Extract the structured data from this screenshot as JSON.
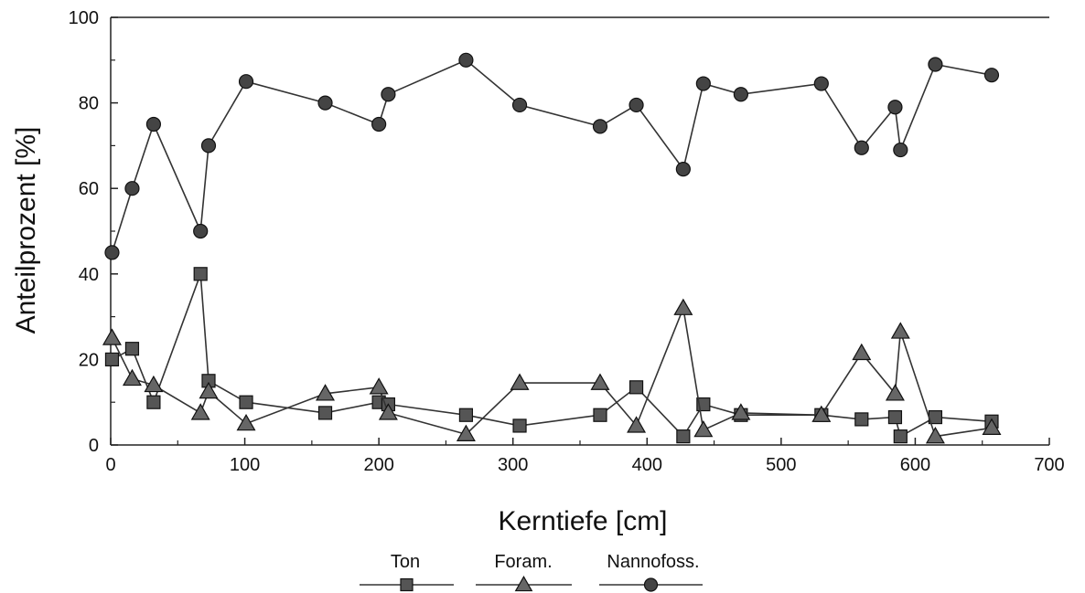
{
  "chart_data": {
    "type": "line",
    "title": "",
    "xlabel": "Kerntiefe [cm]",
    "ylabel": "Anteilprozent [%]",
    "xlim": [
      0,
      700
    ],
    "ylim": [
      0,
      100
    ],
    "x_ticks": [
      0,
      100,
      200,
      300,
      400,
      500,
      600,
      700
    ],
    "y_ticks": [
      0,
      20,
      40,
      60,
      80,
      100
    ],
    "grid": false,
    "legend_position": "bottom-center",
    "series": [
      {
        "name": "Ton",
        "marker": "square",
        "color": "#333333",
        "points": [
          [
            1,
            20
          ],
          [
            16,
            22.5
          ],
          [
            32,
            10
          ],
          [
            67,
            40
          ],
          [
            73,
            15
          ],
          [
            101,
            10
          ],
          [
            160,
            7.5
          ],
          [
            200,
            10
          ],
          [
            207,
            9.5
          ],
          [
            265,
            7
          ],
          [
            305,
            4.5
          ],
          [
            365,
            7
          ],
          [
            392,
            13.5
          ],
          [
            427,
            2
          ],
          [
            442,
            9.5
          ],
          [
            470,
            7
          ],
          [
            530,
            7
          ],
          [
            560,
            6
          ],
          [
            585,
            6.5
          ],
          [
            589,
            2
          ],
          [
            615,
            6.5
          ],
          [
            657,
            5.5
          ]
        ]
      },
      {
        "name": "Foram.",
        "marker": "triangle",
        "color": "#333333",
        "points": [
          [
            1,
            25
          ],
          [
            16,
            15.5
          ],
          [
            32,
            14
          ],
          [
            67,
            7.5
          ],
          [
            73,
            12.5
          ],
          [
            101,
            5
          ],
          [
            160,
            12
          ],
          [
            200,
            13.5
          ],
          [
            207,
            7.5
          ],
          [
            265,
            2.5
          ],
          [
            305,
            14.5
          ],
          [
            365,
            14.5
          ],
          [
            392,
            4.5
          ],
          [
            427,
            32
          ],
          [
            442,
            3.5
          ],
          [
            470,
            7.5
          ],
          [
            530,
            7
          ],
          [
            560,
            21.5
          ],
          [
            585,
            12
          ],
          [
            589,
            26.5
          ],
          [
            615,
            2
          ],
          [
            657,
            4
          ]
        ]
      },
      {
        "name": "Nannofoss.",
        "marker": "circle",
        "color": "#333333",
        "points": [
          [
            1,
            45
          ],
          [
            16,
            60
          ],
          [
            32,
            75
          ],
          [
            67,
            50
          ],
          [
            73,
            70
          ],
          [
            101,
            85
          ],
          [
            160,
            80
          ],
          [
            200,
            75
          ],
          [
            207,
            82
          ],
          [
            265,
            90
          ],
          [
            305,
            79.5
          ],
          [
            365,
            74.5
          ],
          [
            392,
            79.5
          ],
          [
            427,
            64.5
          ],
          [
            442,
            84.5
          ],
          [
            470,
            82
          ],
          [
            530,
            84.5
          ],
          [
            560,
            69.5
          ],
          [
            585,
            79
          ],
          [
            589,
            69
          ],
          [
            615,
            89
          ],
          [
            657,
            86.5
          ]
        ]
      }
    ]
  }
}
